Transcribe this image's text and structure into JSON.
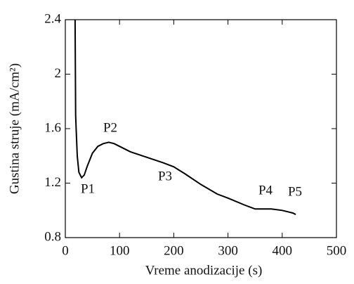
{
  "chart_data": {
    "type": "line",
    "xlabel": "Vreme anodizacije (s)",
    "ylabel": "Gustina struje (mA/cm²)",
    "x": [
      18,
      19,
      20,
      22,
      25,
      30,
      35,
      40,
      50,
      60,
      70,
      80,
      90,
      100,
      120,
      150,
      180,
      200,
      220,
      250,
      280,
      300,
      330,
      350,
      380,
      400,
      410,
      420,
      425
    ],
    "values": [
      2.4,
      1.7,
      1.6,
      1.4,
      1.28,
      1.24,
      1.26,
      1.32,
      1.42,
      1.47,
      1.49,
      1.5,
      1.49,
      1.47,
      1.43,
      1.39,
      1.35,
      1.32,
      1.27,
      1.19,
      1.12,
      1.09,
      1.04,
      1.01,
      1.01,
      1.0,
      0.99,
      0.98,
      0.97
    ],
    "color": "#000000",
    "xlim": [
      0,
      500
    ],
    "xticks": [
      0,
      100,
      200,
      300,
      400,
      500
    ],
    "ylim": [
      0.8,
      2.4
    ],
    "yticks": [
      0.8,
      1.2,
      1.6,
      2,
      2.4
    ],
    "annotations": [
      "P1",
      "P2",
      "P3",
      "P4",
      "P5"
    ]
  }
}
